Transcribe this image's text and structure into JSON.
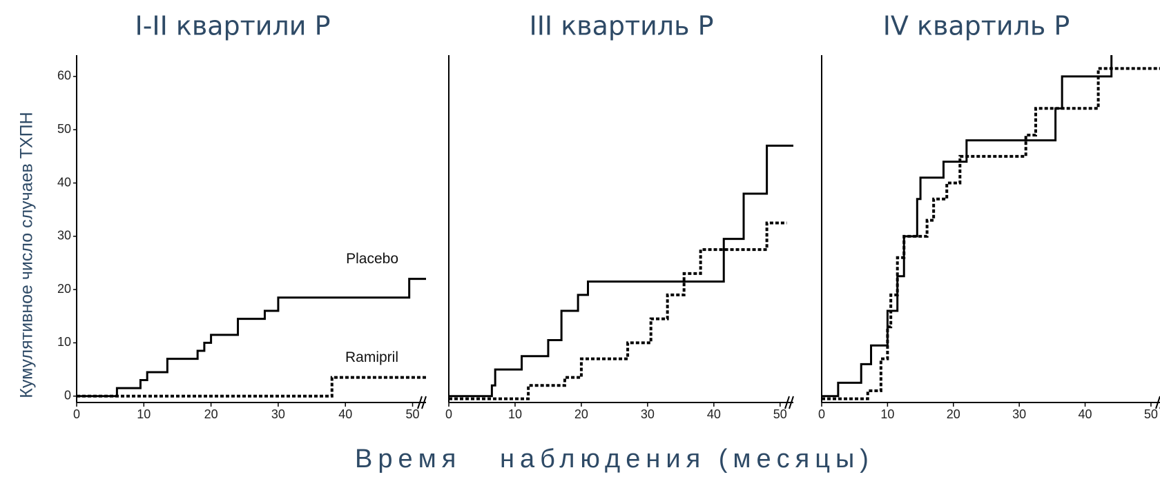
{
  "chart_data": [
    {
      "type": "step",
      "title": "I-II квартили P",
      "y_label": "Кумулятивное число случаев ТХПН",
      "xlim": [
        0,
        52
      ],
      "ylim": [
        -1.2,
        64
      ],
      "xticks": [
        0,
        10,
        20,
        30,
        40,
        50
      ],
      "yticks": [
        0,
        10,
        20,
        30,
        40,
        50,
        60
      ],
      "series": [
        {
          "name": "Placebo",
          "style": "solid",
          "x": [
            0,
            6,
            9.5,
            10.5,
            13.5,
            18,
            19,
            20,
            24,
            28,
            30,
            49.5,
            52
          ],
          "values": [
            0,
            1.5,
            3,
            4.5,
            7,
            8.5,
            10,
            11.5,
            14.5,
            16,
            18.5,
            22,
            22
          ]
        },
        {
          "name": "Ramipril",
          "style": "dotted",
          "x": [
            0,
            38,
            52
          ],
          "values": [
            0,
            3.5,
            3.5
          ]
        }
      ]
    },
    {
      "type": "step",
      "title": "III квартиль P",
      "x_label": "Время   наблюдения (месяцы)",
      "xlim": [
        0,
        52
      ],
      "ylim": [
        -1.2,
        64
      ],
      "xticks": [
        0,
        10,
        20,
        30,
        40,
        50
      ],
      "series": [
        {
          "style": "solid",
          "x": [
            0,
            6.5,
            7,
            11,
            15,
            17,
            19.5,
            21,
            41.5,
            44.5,
            48,
            52
          ],
          "values": [
            0,
            2,
            5,
            7.5,
            10.5,
            16,
            19,
            21.5,
            29.5,
            38,
            47,
            47
          ]
        },
        {
          "style": "dotted",
          "x": [
            0,
            12,
            17.5,
            20,
            27,
            30.5,
            33,
            35.5,
            38,
            48,
            51
          ],
          "values": [
            -0.5,
            2,
            3.5,
            7,
            10,
            14.5,
            19,
            23,
            27.5,
            32.5,
            32.5
          ]
        }
      ]
    },
    {
      "type": "step",
      "title": "IV квартиль P",
      "xlim": [
        0,
        52
      ],
      "ylim": [
        -1.2,
        64
      ],
      "xticks": [
        0,
        10,
        20,
        30,
        40,
        50
      ],
      "series": [
        {
          "style": "solid",
          "x": [
            0,
            2.5,
            6,
            7.5,
            10,
            11.5,
            12.5,
            14.5,
            15,
            18.5,
            22,
            35.5,
            36.5,
            44
          ],
          "values": [
            0,
            2.5,
            6,
            9.5,
            16,
            22.5,
            30,
            37,
            41,
            44,
            48,
            54,
            60,
            64
          ]
        },
        {
          "style": "dotted",
          "x": [
            0,
            7,
            9,
            10,
            10.5,
            11.5,
            12.5,
            16,
            17,
            19,
            21,
            31,
            32.5,
            42,
            52
          ],
          "values": [
            -0.5,
            1,
            7,
            13,
            19,
            26,
            30,
            33,
            37,
            40,
            45,
            49,
            54,
            61.5,
            61.5
          ]
        }
      ]
    }
  ]
}
